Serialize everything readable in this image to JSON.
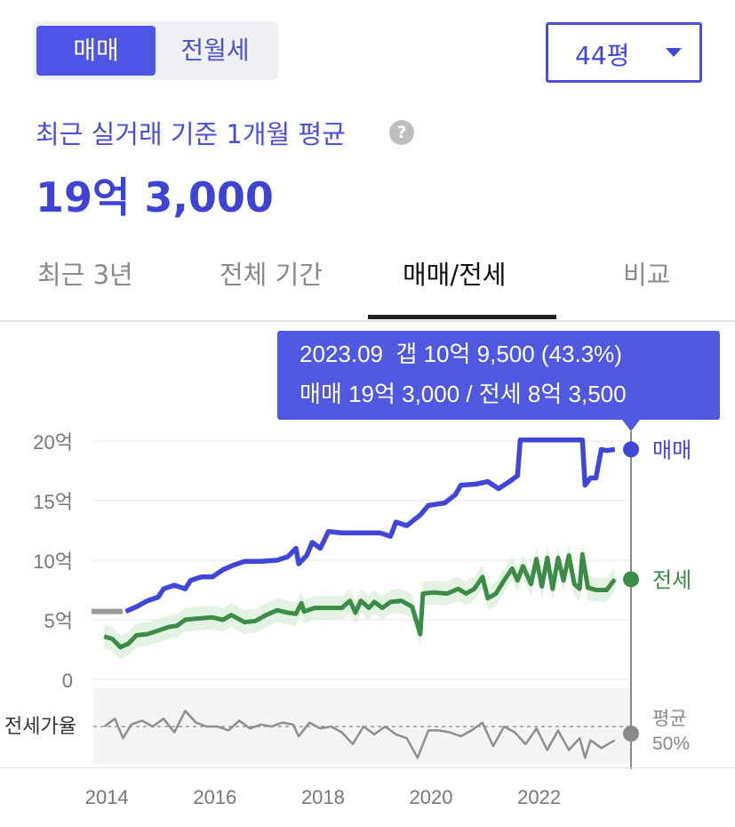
{
  "toggle": {
    "sale_label": "매매",
    "jeonse_label": "전월세"
  },
  "size": {
    "value": "44평"
  },
  "summary": {
    "subtitle": "최근 실거래 기준 1개월 평균",
    "help": "?",
    "price": "19억 3,000"
  },
  "tabs": [
    "최근 3년",
    "전체 기간",
    "매매/전세",
    "비교"
  ],
  "tooltip": {
    "line1": "2023.09  갭 10억 9,500 (43.3%)",
    "line2": "매매 19억 3,000 / 전세 8억 3,500"
  },
  "colors": {
    "sale": "#4046d6",
    "jeonse": "#3a8c46",
    "ratio": "#8e8e8e",
    "tooltip_bg": "#5058e0"
  },
  "chart_data": {
    "type": "line",
    "title": "",
    "xlabel": "",
    "ylabel": "",
    "x_ticks": [
      "2014",
      "2016",
      "2018",
      "2020",
      "2022"
    ],
    "y_ticks": [
      "0",
      "5억",
      "10억",
      "15억",
      "20억"
    ],
    "ylim": [
      0,
      20
    ],
    "xlim": [
      2013.8,
      2023.75
    ],
    "grid": true,
    "series": [
      {
        "name": "매매",
        "end_label": "매매",
        "points": [
          [
            2014.4,
            5.7
          ],
          [
            2014.6,
            6.1
          ],
          [
            2014.8,
            6.6
          ],
          [
            2015.0,
            6.9
          ],
          [
            2015.1,
            7.6
          ],
          [
            2015.3,
            7.9
          ],
          [
            2015.5,
            7.6
          ],
          [
            2015.6,
            8.3
          ],
          [
            2015.8,
            8.6
          ],
          [
            2016.0,
            8.6
          ],
          [
            2016.2,
            9.2
          ],
          [
            2016.4,
            9.6
          ],
          [
            2016.6,
            9.9
          ],
          [
            2016.9,
            9.9
          ],
          [
            2017.2,
            10.0
          ],
          [
            2017.4,
            10.3
          ],
          [
            2017.55,
            11.0
          ],
          [
            2017.6,
            9.7
          ],
          [
            2017.75,
            10.4
          ],
          [
            2017.85,
            11.5
          ],
          [
            2018.0,
            11.0
          ],
          [
            2018.15,
            12.4
          ],
          [
            2018.4,
            12.3
          ],
          [
            2018.8,
            12.3
          ],
          [
            2019.1,
            12.3
          ],
          [
            2019.3,
            12.0
          ],
          [
            2019.4,
            13.2
          ],
          [
            2019.6,
            12.9
          ],
          [
            2019.85,
            13.8
          ],
          [
            2020.0,
            14.6
          ],
          [
            2020.3,
            14.8
          ],
          [
            2020.5,
            15.5
          ],
          [
            2020.6,
            16.3
          ],
          [
            2020.9,
            16.4
          ],
          [
            2021.1,
            16.6
          ],
          [
            2021.3,
            16.0
          ],
          [
            2021.5,
            16.6
          ],
          [
            2021.65,
            17.1
          ],
          [
            2021.7,
            20.1
          ],
          [
            2022.0,
            20.1
          ],
          [
            2022.3,
            20.1
          ],
          [
            2022.7,
            20.1
          ],
          [
            2022.85,
            20.1
          ],
          [
            2022.9,
            16.3
          ],
          [
            2023.0,
            16.9
          ],
          [
            2023.1,
            16.9
          ],
          [
            2023.2,
            19.3
          ],
          [
            2023.3,
            19.2
          ],
          [
            2023.45,
            19.3
          ]
        ]
      },
      {
        "name": "전세",
        "end_label": "전세",
        "points": [
          [
            2014.0,
            3.6
          ],
          [
            2014.15,
            3.4
          ],
          [
            2014.3,
            2.7
          ],
          [
            2014.45,
            3.0
          ],
          [
            2014.6,
            3.7
          ],
          [
            2014.8,
            3.8
          ],
          [
            2015.0,
            4.1
          ],
          [
            2015.2,
            4.4
          ],
          [
            2015.35,
            4.5
          ],
          [
            2015.5,
            5.0
          ],
          [
            2015.7,
            5.1
          ],
          [
            2016.0,
            5.2
          ],
          [
            2016.2,
            5.0
          ],
          [
            2016.35,
            5.4
          ],
          [
            2016.6,
            4.8
          ],
          [
            2016.8,
            4.9
          ],
          [
            2017.0,
            5.4
          ],
          [
            2017.2,
            5.8
          ],
          [
            2017.4,
            5.6
          ],
          [
            2017.55,
            5.5
          ],
          [
            2017.65,
            6.4
          ],
          [
            2017.7,
            5.7
          ],
          [
            2017.9,
            6.0
          ],
          [
            2018.1,
            6.0
          ],
          [
            2018.4,
            6.0
          ],
          [
            2018.55,
            6.6
          ],
          [
            2018.65,
            5.6
          ],
          [
            2018.75,
            6.6
          ],
          [
            2018.9,
            6.0
          ],
          [
            2019.0,
            6.5
          ],
          [
            2019.15,
            6.0
          ],
          [
            2019.3,
            6.5
          ],
          [
            2019.5,
            6.6
          ],
          [
            2019.7,
            6.1
          ],
          [
            2019.85,
            3.8
          ],
          [
            2019.9,
            7.2
          ],
          [
            2020.1,
            7.3
          ],
          [
            2020.35,
            7.2
          ],
          [
            2020.55,
            7.6
          ],
          [
            2020.7,
            7.2
          ],
          [
            2020.85,
            7.6
          ],
          [
            2021.0,
            8.6
          ],
          [
            2021.1,
            6.8
          ],
          [
            2021.25,
            7.2
          ],
          [
            2021.4,
            8.3
          ],
          [
            2021.55,
            9.3
          ],
          [
            2021.65,
            8.3
          ],
          [
            2021.75,
            9.5
          ],
          [
            2021.9,
            8.0
          ],
          [
            2022.0,
            10.1
          ],
          [
            2022.1,
            7.8
          ],
          [
            2022.2,
            10.2
          ],
          [
            2022.3,
            7.6
          ],
          [
            2022.4,
            10.2
          ],
          [
            2022.5,
            8.3
          ],
          [
            2022.6,
            10.4
          ],
          [
            2022.7,
            8.0
          ],
          [
            2022.8,
            7.6
          ],
          [
            2022.85,
            10.5
          ],
          [
            2022.95,
            7.7
          ],
          [
            2023.1,
            7.5
          ],
          [
            2023.3,
            7.5
          ],
          [
            2023.45,
            8.4
          ]
        ]
      },
      {
        "name": "전세가율",
        "label": "전세가율",
        "end_label": "평균",
        "end_value": "50%",
        "points": [
          [
            2014.0,
            50
          ],
          [
            2014.2,
            54
          ],
          [
            2014.35,
            44
          ],
          [
            2014.5,
            51
          ],
          [
            2014.7,
            53
          ],
          [
            2014.9,
            50
          ],
          [
            2015.1,
            54
          ],
          [
            2015.3,
            47
          ],
          [
            2015.5,
            58
          ],
          [
            2015.7,
            52
          ],
          [
            2015.9,
            50
          ],
          [
            2016.1,
            50
          ],
          [
            2016.3,
            48
          ],
          [
            2016.5,
            53
          ],
          [
            2016.7,
            49
          ],
          [
            2016.9,
            51
          ],
          [
            2017.1,
            50
          ],
          [
            2017.3,
            52
          ],
          [
            2017.5,
            51
          ],
          [
            2017.6,
            45
          ],
          [
            2017.8,
            52
          ],
          [
            2018.0,
            49
          ],
          [
            2018.2,
            50
          ],
          [
            2018.4,
            47
          ],
          [
            2018.6,
            41
          ],
          [
            2018.8,
            50
          ],
          [
            2019.0,
            46
          ],
          [
            2019.2,
            50
          ],
          [
            2019.4,
            46
          ],
          [
            2019.6,
            44
          ],
          [
            2019.8,
            34
          ],
          [
            2020.0,
            48
          ],
          [
            2020.2,
            48
          ],
          [
            2020.4,
            47
          ],
          [
            2020.6,
            45
          ],
          [
            2020.8,
            48
          ],
          [
            2021.0,
            52
          ],
          [
            2021.2,
            40
          ],
          [
            2021.4,
            50
          ],
          [
            2021.6,
            47
          ],
          [
            2021.8,
            41
          ],
          [
            2022.0,
            49
          ],
          [
            2022.2,
            38
          ],
          [
            2022.4,
            48
          ],
          [
            2022.6,
            38
          ],
          [
            2022.8,
            44
          ],
          [
            2022.9,
            34
          ],
          [
            2023.0,
            43
          ],
          [
            2023.2,
            39
          ],
          [
            2023.45,
            43
          ]
        ]
      }
    ]
  }
}
